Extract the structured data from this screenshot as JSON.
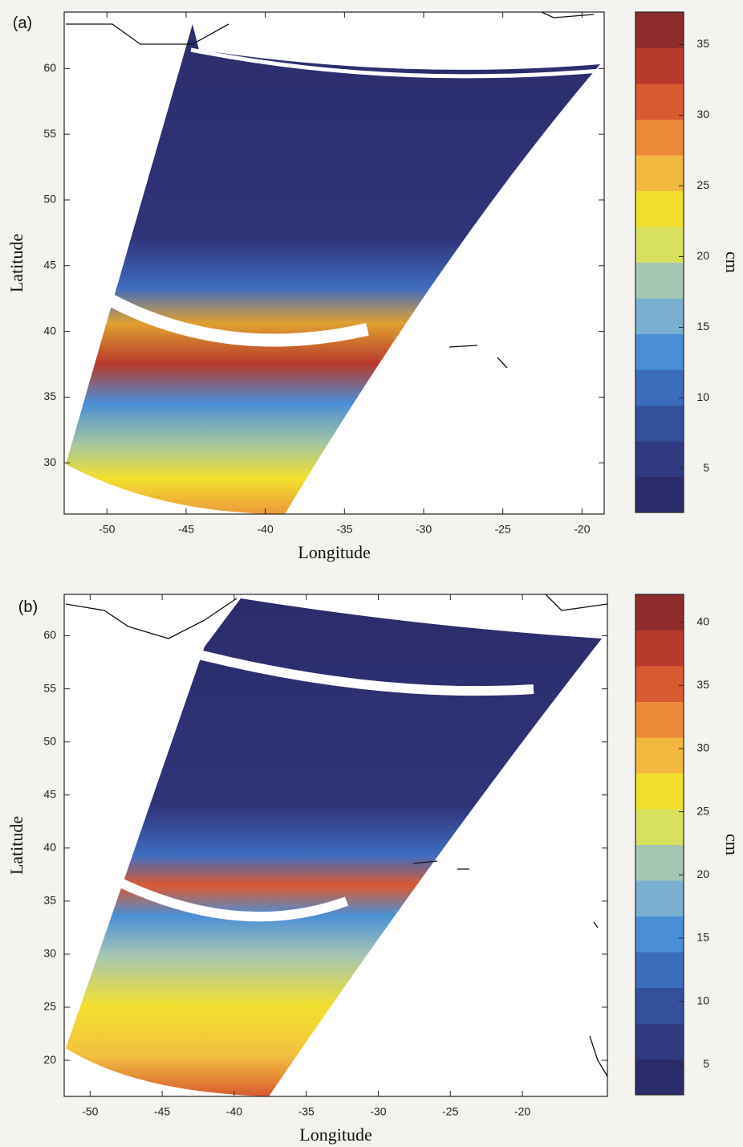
{
  "chart_data": [
    {
      "type": "map",
      "panel_label": "(a)",
      "x_label": "Longitude",
      "y_label": "Latitude",
      "xlim": [
        -52.7,
        -18.6
      ],
      "ylim": [
        26.1,
        64.3
      ],
      "xticks": [
        -50,
        -45,
        -40,
        -35,
        -30,
        -25,
        -20
      ],
      "yticks": [
        30,
        35,
        40,
        45,
        50,
        55,
        60
      ],
      "colorbar": {
        "label": "cm",
        "lim": [
          1.9,
          37.3
        ],
        "ticks": [
          5,
          10,
          15,
          20,
          25,
          30,
          35
        ],
        "colors": [
          "#2b2c6a",
          "#303a80",
          "#34509c",
          "#3c6cbc",
          "#4a8fd6",
          "#79b0d0",
          "#a6c6b4",
          "#d8e060",
          "#f2e02e",
          "#f2b840",
          "#ec8a3a",
          "#d85a30",
          "#b83a2c",
          "#8e2c2c"
        ]
      }
    },
    {
      "type": "map",
      "panel_label": "(b)",
      "x_label": "Longitude",
      "y_label": "Latitude",
      "xlim": [
        -51.8,
        -14.1
      ],
      "ylim": [
        16.6,
        63.9
      ],
      "xticks": [
        -50,
        -45,
        -40,
        -35,
        -30,
        -25,
        -20
      ],
      "yticks": [
        20,
        25,
        30,
        35,
        40,
        45,
        50,
        55,
        60
      ],
      "colorbar": {
        "label": "cm",
        "lim": [
          2.6,
          42.2
        ],
        "ticks": [
          5,
          10,
          15,
          20,
          25,
          30,
          35,
          40
        ],
        "colors": [
          "#2b2c6a",
          "#303a80",
          "#34509c",
          "#3c6cbc",
          "#4a8fd6",
          "#79b0d0",
          "#a6c6b4",
          "#d8e060",
          "#f2e02e",
          "#f2b840",
          "#ec8a3a",
          "#d85a30",
          "#b83a2c",
          "#8e2c2c"
        ]
      }
    }
  ]
}
